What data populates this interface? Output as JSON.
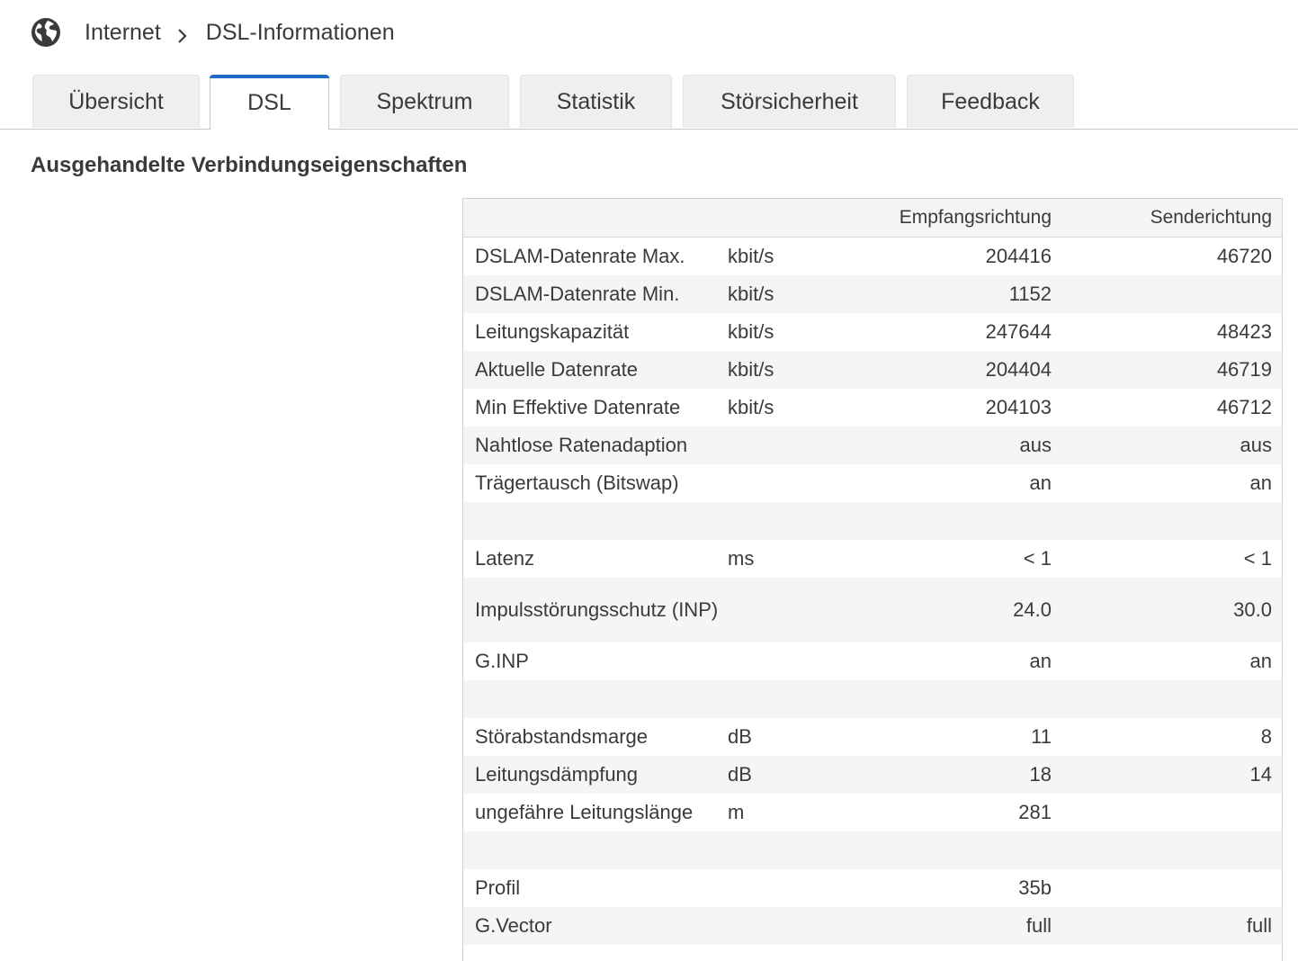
{
  "breadcrumb": {
    "icon": "globe-icon",
    "root": "Internet",
    "current": "DSL-Informationen"
  },
  "tabs": [
    {
      "label": "Übersicht",
      "active": false
    },
    {
      "label": "DSL",
      "active": true
    },
    {
      "label": "Spektrum",
      "active": false
    },
    {
      "label": "Statistik",
      "active": false
    },
    {
      "label": "Störsicherheit",
      "active": false
    },
    {
      "label": "Feedback",
      "active": false
    }
  ],
  "colors": {
    "accent": "#1c6cc4",
    "row_alt": "#f5f5f5"
  },
  "section": {
    "title": "Ausgehandelte Verbindungseigenschaften"
  },
  "table": {
    "header": {
      "label": "",
      "unit": "",
      "rx": "Empfangsrichtung",
      "tx": "Senderichtung"
    },
    "rows": [
      {
        "label": "DSLAM-Datenrate Max.",
        "unit": "kbit/s",
        "rx": "204416",
        "tx": "46720"
      },
      {
        "label": "DSLAM-Datenrate Min.",
        "unit": "kbit/s",
        "rx": "1152",
        "tx": ""
      },
      {
        "label": "Leitungskapazität",
        "unit": "kbit/s",
        "rx": "247644",
        "tx": "48423"
      },
      {
        "label": "Aktuelle Datenrate",
        "unit": "kbit/s",
        "rx": "204404",
        "tx": "46719"
      },
      {
        "label": "Min Effektive Datenrate",
        "unit": "kbit/s",
        "rx": "204103",
        "tx": "46712"
      },
      {
        "label": "Nahtlose Ratenadaption",
        "unit": "",
        "rx": "aus",
        "tx": "aus"
      },
      {
        "label": "Trägertausch (Bitswap)",
        "unit": "",
        "rx": "an",
        "tx": "an"
      },
      {
        "label": "",
        "unit": "",
        "rx": "",
        "tx": ""
      },
      {
        "label": "Latenz",
        "unit": "ms",
        "rx": "< 1",
        "tx": "< 1"
      },
      {
        "label": "Impulsstörungsschutz (INP)",
        "unit": "",
        "rx": "24.0",
        "tx": "30.0"
      },
      {
        "label": "G.INP",
        "unit": "",
        "rx": "an",
        "tx": "an"
      },
      {
        "label": "",
        "unit": "",
        "rx": "",
        "tx": ""
      },
      {
        "label": "Störabstandsmarge",
        "unit": "dB",
        "rx": "11",
        "tx": "8"
      },
      {
        "label": "Leitungsdämpfung",
        "unit": "dB",
        "rx": "18",
        "tx": "14"
      },
      {
        "label": "ungefähre Leitungslänge",
        "unit": "m",
        "rx": "281",
        "tx": ""
      },
      {
        "label": "",
        "unit": "",
        "rx": "",
        "tx": ""
      },
      {
        "label": "Profil",
        "unit": "",
        "rx": "35b",
        "tx": ""
      },
      {
        "label": "G.Vector",
        "unit": "",
        "rx": "full",
        "tx": "full"
      }
    ]
  }
}
